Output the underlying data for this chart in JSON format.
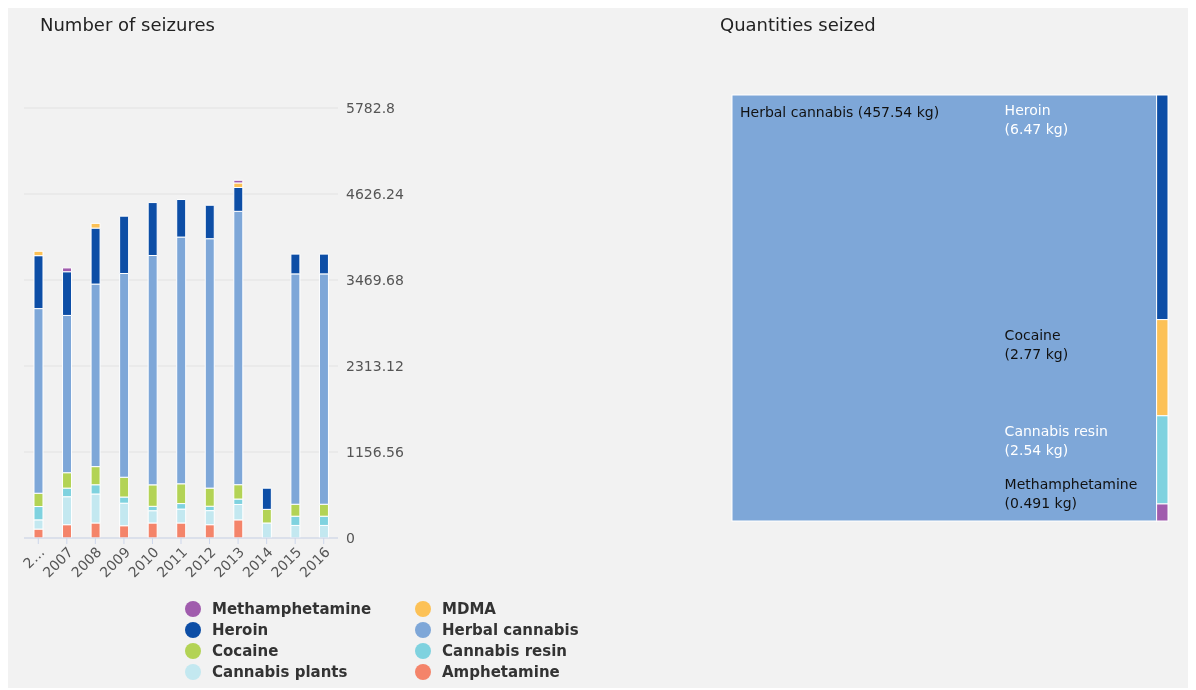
{
  "chart_data": [
    {
      "type": "bar",
      "title": "Number of seizures",
      "stacked": true,
      "categories": [
        "2…",
        "2007",
        "2008",
        "2009",
        "2010",
        "2011",
        "2012",
        "2013",
        "2014",
        "2015",
        "2016"
      ],
      "ylim": [
        0,
        5782.8
      ],
      "yticks": [
        0,
        1156.56,
        2313.12,
        3469.68,
        4626.24,
        5782.8
      ],
      "grid": "y",
      "legend": "bottom",
      "series": [
        {
          "name": "Amphetamine",
          "color": "#f4846a",
          "values": [
            120,
            179,
            202,
            165,
            202,
            202,
            179,
            244,
            0,
            0,
            0
          ]
        },
        {
          "name": "Cannabis plants",
          "color": "#c3e8f0",
          "values": [
            124,
            376,
            390,
            303,
            165,
            187,
            189,
            207,
            202,
            169,
            169
          ]
        },
        {
          "name": "Cannabis resin",
          "color": "#7fd2df",
          "values": [
            179,
            116,
            124,
            83,
            59,
            74,
            59,
            73,
            0,
            124,
            124
          ]
        },
        {
          "name": "Cocaine",
          "color": "#b3d355",
          "values": [
            179,
            207,
            244,
            266,
            289,
            266,
            244,
            193,
            183,
            161,
            161
          ]
        },
        {
          "name": "Herbal cannabis",
          "color": "#7ea7d8",
          "values": [
            2483,
            2115,
            2455,
            2740,
            3084,
            3318,
            3354,
            3676,
            0,
            3098,
            3098
          ]
        },
        {
          "name": "Heroin",
          "color": "#0d4ea6",
          "values": [
            712,
            588,
            753,
            771,
            712,
            505,
            450,
            321,
            285,
            266,
            266
          ]
        },
        {
          "name": "MDMA",
          "color": "#fcc156",
          "values": [
            59,
            0,
            63,
            0,
            0,
            0,
            0,
            61,
            0,
            0,
            0
          ]
        },
        {
          "name": "Methamphetamine",
          "color": "#a05cad",
          "values": [
            0,
            51,
            0,
            0,
            0,
            0,
            0,
            36,
            0,
            0,
            0
          ]
        }
      ]
    },
    {
      "type": "other",
      "title": "Quantities seized",
      "categories": [
        "Herbal cannabis",
        "Heroin",
        "Cocaine",
        "Cannabis resin",
        "Methamphetamine"
      ],
      "values": [
        457.54,
        6.47,
        2.77,
        2.54,
        0.491
      ],
      "value_labels": [
        "(457.54 kg)",
        "(6.47 kg)",
        "(2.77 kg)",
        "(2.54 kg)",
        "(0.491 kg)"
      ],
      "colors": [
        "#7ea7d8",
        "#0d4ea6",
        "#fcc156",
        "#7fd2df",
        "#a05cad"
      ]
    }
  ]
}
